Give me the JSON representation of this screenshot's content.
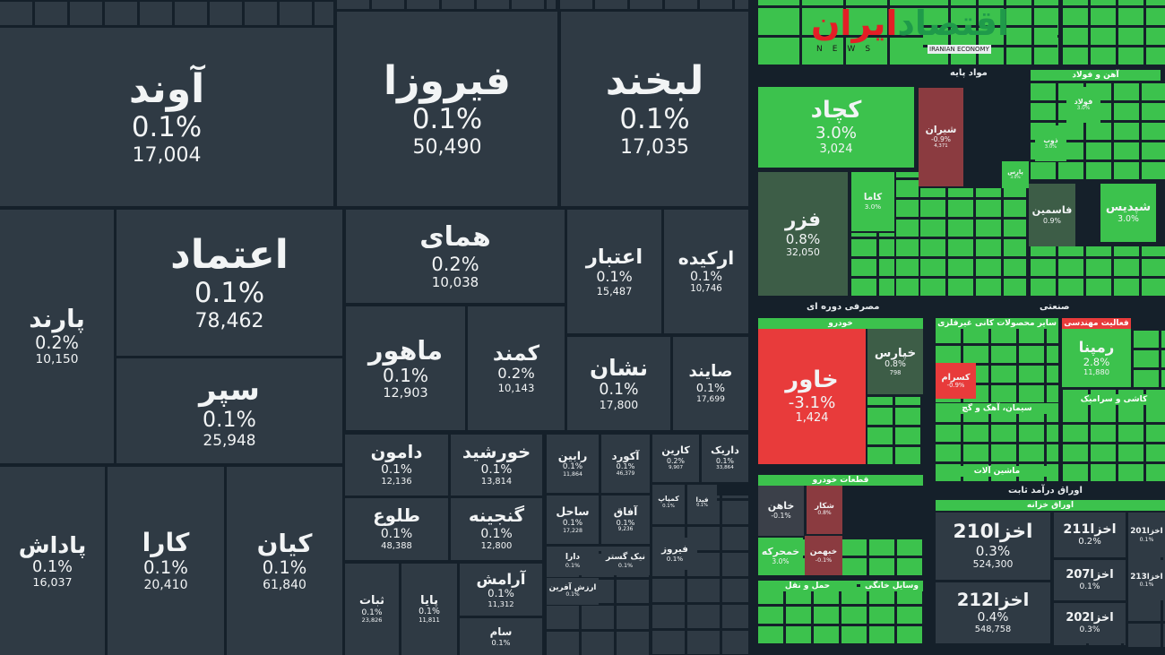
{
  "chart_data": {
    "type": "treemap",
    "title": "",
    "color_scale": {
      "positive": "#3cc24d",
      "neutral": "#2f3a44",
      "negative": "#e83b3b",
      "weak_negative": "#8b3b40",
      "weak_positive": "#3d5d47"
    },
    "left_cells": [
      {
        "name": "آوند",
        "pct": "0.1%",
        "vol": "17,004"
      },
      {
        "name": "فیروزا",
        "pct": "0.1%",
        "vol": "50,490"
      },
      {
        "name": "لبخند",
        "pct": "0.1%",
        "vol": "17,035"
      },
      {
        "name": "پارند",
        "pct": "0.2%",
        "vol": "10,150"
      },
      {
        "name": "اعتماد",
        "pct": "0.1%",
        "vol": "78,462"
      },
      {
        "name": "سپر",
        "pct": "0.1%",
        "vol": "25,948"
      },
      {
        "name": "همای",
        "pct": "0.2%",
        "vol": "10,038"
      },
      {
        "name": "اعتبار",
        "pct": "0.1%",
        "vol": "15,487"
      },
      {
        "name": "ارکیده",
        "pct": "0.1%",
        "vol": "10,746"
      },
      {
        "name": "ماهور",
        "pct": "0.1%",
        "vol": "12,903"
      },
      {
        "name": "کمند",
        "pct": "0.2%",
        "vol": "10,143"
      },
      {
        "name": "نشان",
        "pct": "0.1%",
        "vol": "17,800"
      },
      {
        "name": "صایند",
        "pct": "0.1%",
        "vol": "17,699"
      },
      {
        "name": "پاداش",
        "pct": "0.1%",
        "vol": "16,037"
      },
      {
        "name": "کارا",
        "pct": "0.1%",
        "vol": "20,410"
      },
      {
        "name": "کیان",
        "pct": "0.1%",
        "vol": "61,840"
      },
      {
        "name": "دامون",
        "pct": "0.1%",
        "vol": "12,136"
      },
      {
        "name": "خورشید",
        "pct": "0.1%",
        "vol": "13,814"
      },
      {
        "name": "طلوع",
        "pct": "0.1%",
        "vol": "48,388"
      },
      {
        "name": "گنجینه",
        "pct": "0.1%",
        "vol": "12,800"
      },
      {
        "name": "ثبات",
        "pct": "0.1%",
        "vol": "23,826"
      },
      {
        "name": "پایا",
        "pct": "0.1%",
        "vol": "11,811"
      },
      {
        "name": "آرامش",
        "pct": "0.1%",
        "vol": "11,312"
      },
      {
        "name": "سام",
        "pct": "0.1%",
        "vol": ""
      },
      {
        "name": "رابین",
        "pct": "0.1%",
        "vol": "11,864"
      },
      {
        "name": "آکورد",
        "pct": "0.1%",
        "vol": "46,379"
      },
      {
        "name": "کارین",
        "pct": "0.2%",
        "vol": "9,907"
      },
      {
        "name": "داریک",
        "pct": "0.1%",
        "vol": "33,864"
      },
      {
        "name": "ساحل",
        "pct": "0.1%",
        "vol": "17,228"
      },
      {
        "name": "آفاق",
        "pct": "0.1%",
        "vol": "9,236"
      },
      {
        "name": "کمپاپ",
        "pct": "0.1%",
        "vol": ""
      },
      {
        "name": "فیدا",
        "pct": "0.1%",
        "vol": ""
      },
      {
        "name": "دارا",
        "pct": "0.1%",
        "vol": ""
      },
      {
        "name": "نیک گستر",
        "pct": "0.1%",
        "vol": ""
      },
      {
        "name": "ارزش آفرین",
        "pct": "0.1%",
        "vol": ""
      },
      {
        "name": "فیروز",
        "pct": "0.1%",
        "vol": ""
      }
    ],
    "right_cells": [
      {
        "name": "کچاد",
        "pct": "3.0%",
        "vol": "3,024"
      },
      {
        "name": "فزر",
        "pct": "0.8%",
        "vol": "32,050"
      },
      {
        "name": "شیران",
        "pct": "-0.9%",
        "vol": "4,371"
      },
      {
        "name": "کاما",
        "pct": "3.0%",
        "vol": ""
      },
      {
        "name": "شپدیس",
        "pct": "3.0%",
        "vol": ""
      },
      {
        "name": "فاسمین",
        "pct": "0.9%",
        "vol": ""
      },
      {
        "name": "فولاد",
        "pct": "3.0%",
        "vol": ""
      },
      {
        "name": "ذوب",
        "pct": "3.0%",
        "vol": ""
      },
      {
        "name": "پارس",
        "pct": "3.0%",
        "vol": ""
      },
      {
        "name": "خاور",
        "pct": "-3.1%",
        "vol": "1,424"
      },
      {
        "name": "خپارس",
        "pct": "0.8%",
        "vol": "798"
      },
      {
        "name": "خاهن",
        "pct": "-0.1%",
        "vol": ""
      },
      {
        "name": "خمحرکه",
        "pct": "3.0%",
        "vol": ""
      },
      {
        "name": "خبهمن",
        "pct": "-0.1%",
        "vol": ""
      },
      {
        "name": "شکار",
        "pct": "0.8%",
        "vol": ""
      },
      {
        "name": "رمپنا",
        "pct": "2.8%",
        "vol": "11,880"
      },
      {
        "name": "کسرام",
        "pct": "-0.9%",
        "vol": ""
      },
      {
        "name": "اخزا210",
        "pct": "0.3%",
        "vol": "524,300"
      },
      {
        "name": "اخزا212",
        "pct": "0.4%",
        "vol": "548,758"
      },
      {
        "name": "اخزا211",
        "pct": "0.2%",
        "vol": ""
      },
      {
        "name": "اخزا207",
        "pct": "0.1%",
        "vol": ""
      },
      {
        "name": "اخزا202",
        "pct": "0.3%",
        "vol": ""
      },
      {
        "name": "اخزا201",
        "pct": "0.1%",
        "vol": ""
      },
      {
        "name": "اخزا213",
        "pct": "0.1%",
        "vol": ""
      }
    ],
    "sectors": [
      "مواد پایه",
      "مصرفی دوره ای",
      "صنعتی",
      "اوراق درآمد ثابت",
      "آهن و فولاد",
      "خودرو",
      "قطعات خودرو",
      "سایر محصولات کانی غیرفلزی",
      "فعالیت مهندسی",
      "سیمان، آهک و گچ",
      "ماشین آلات",
      "اوراق خزانه",
      "کاشی و سرامیک",
      "وسایل خانگی",
      "حمل و نقل"
    ]
  },
  "logo": {
    "fa_red": "ایران",
    "fa_green": "اقتصاد",
    "en_news": "NEWS",
    "en_brand": "IRANIAN ECONOMY"
  }
}
